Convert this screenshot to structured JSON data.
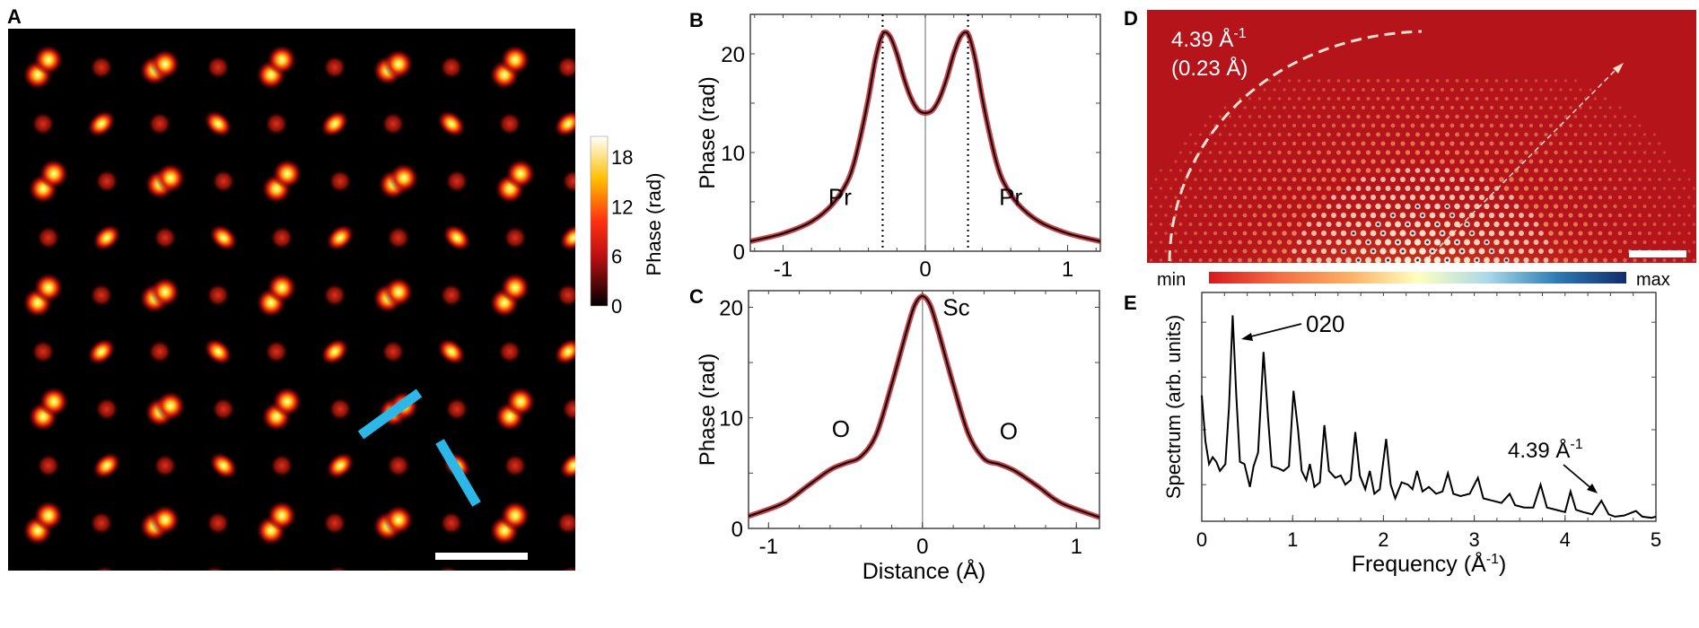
{
  "panels": {
    "a": "A",
    "b": "B",
    "c": "C",
    "d": "D",
    "e": "E"
  },
  "colors": {
    "curve": "#000000",
    "band": "#c0141c",
    "marker_bar": "#2bb8e8",
    "map_bg": "#b5141a"
  },
  "panel_a": {
    "colorbar": {
      "label": "Phase (rad)",
      "ticks": [
        "0",
        "6",
        "12",
        "18"
      ],
      "tick_values": [
        0,
        6,
        12,
        18
      ],
      "range": [
        0,
        20.5
      ]
    }
  },
  "panel_d": {
    "annotation_line1": "4.39 Å",
    "annotation_sup": "-1",
    "annotation_line2": "(0.23 Å)",
    "colorbar": {
      "min": "min",
      "max": "max",
      "colors": [
        "#d7191c",
        "#f46d43",
        "#fdae61",
        "#ffffbf",
        "#abd9e9",
        "#2c7bb6",
        "#132b6b"
      ]
    }
  },
  "chart_data": [
    {
      "panel": "B",
      "type": "line",
      "xlabel": "",
      "ylabel": "Phase (rad)",
      "xlim": [
        -1.23,
        1.23
      ],
      "ylim": [
        0,
        24
      ],
      "xticks": [
        -1,
        0,
        1
      ],
      "yticks": [
        0,
        10,
        20
      ],
      "annotations": [
        {
          "text": "Pr",
          "x": -0.6,
          "y": 5.5
        },
        {
          "text": "Pr",
          "x": 0.6,
          "y": 5.5
        }
      ],
      "vlines_dotted": [
        -0.3,
        0.3
      ],
      "vline_solid": 0,
      "points": [
        [
          -1.23,
          1.0
        ],
        [
          -1.0,
          1.8
        ],
        [
          -0.8,
          3.0
        ],
        [
          -0.65,
          4.8
        ],
        [
          -0.55,
          7.0
        ],
        [
          -0.5,
          9.0
        ],
        [
          -0.45,
          12.0
        ],
        [
          -0.4,
          15.5
        ],
        [
          -0.35,
          19.5
        ],
        [
          -0.3,
          22.0
        ],
        [
          -0.25,
          21.8
        ],
        [
          -0.2,
          20.0
        ],
        [
          -0.15,
          17.5
        ],
        [
          -0.1,
          15.5
        ],
        [
          -0.05,
          14.3
        ],
        [
          0,
          14.0
        ],
        [
          0.05,
          14.3
        ],
        [
          0.1,
          15.5
        ],
        [
          0.15,
          17.5
        ],
        [
          0.2,
          20.0
        ],
        [
          0.25,
          21.8
        ],
        [
          0.3,
          22.0
        ],
        [
          0.35,
          19.5
        ],
        [
          0.4,
          15.5
        ],
        [
          0.45,
          12.0
        ],
        [
          0.5,
          9.0
        ],
        [
          0.55,
          7.0
        ],
        [
          0.65,
          4.8
        ],
        [
          0.8,
          3.0
        ],
        [
          1.0,
          1.8
        ],
        [
          1.23,
          1.0
        ]
      ]
    },
    {
      "panel": "C",
      "type": "line",
      "xlabel": "Distance (Å)",
      "ylabel": "Phase (rad)",
      "xlim": [
        -1.13,
        1.15
      ],
      "ylim": [
        0,
        21.5
      ],
      "xticks": [
        -1,
        0,
        1
      ],
      "yticks": [
        0,
        10,
        20
      ],
      "annotations": [
        {
          "text": "Sc",
          "x": 0.22,
          "y": 20
        },
        {
          "text": "O",
          "x": -0.53,
          "y": 9.0
        },
        {
          "text": "O",
          "x": 0.56,
          "y": 8.8
        }
      ],
      "vline_solid": 0,
      "points": [
        [
          -1.13,
          1.1
        ],
        [
          -0.9,
          2.3
        ],
        [
          -0.75,
          3.8
        ],
        [
          -0.6,
          5.3
        ],
        [
          -0.5,
          5.9
        ],
        [
          -0.4,
          6.5
        ],
        [
          -0.3,
          8.5
        ],
        [
          -0.2,
          13.0
        ],
        [
          -0.1,
          18.0
        ],
        [
          -0.05,
          20.2
        ],
        [
          0,
          21.0
        ],
        [
          0.05,
          20.2
        ],
        [
          0.1,
          18.0
        ],
        [
          0.2,
          13.0
        ],
        [
          0.3,
          8.5
        ],
        [
          0.4,
          6.3
        ],
        [
          0.5,
          5.8
        ],
        [
          0.6,
          5.2
        ],
        [
          0.75,
          3.8
        ],
        [
          0.9,
          2.3
        ],
        [
          1.15,
          1.0
        ]
      ]
    },
    {
      "panel": "E",
      "type": "line",
      "xlabel": "Frequency (Å",
      "xlabel_sup": "-1",
      "xlabel_end": ")",
      "ylabel": "Spectrum (arb. units)",
      "xlim": [
        0,
        5
      ],
      "ylim": [
        0,
        1
      ],
      "xticks": [
        0,
        1,
        2,
        3,
        4,
        5
      ],
      "annotations": [
        {
          "text": "020",
          "x": 0.9,
          "y": 0.9
        },
        {
          "text": "4.39 Å",
          "sup": "-1",
          "x": 4.39,
          "y": 0.3
        }
      ],
      "points": [
        [
          0,
          0.55
        ],
        [
          0.04,
          0.35
        ],
        [
          0.08,
          0.25
        ],
        [
          0.12,
          0.28
        ],
        [
          0.16,
          0.26
        ],
        [
          0.2,
          0.22
        ],
        [
          0.26,
          0.25
        ],
        [
          0.3,
          0.5
        ],
        [
          0.34,
          0.9
        ],
        [
          0.38,
          0.55
        ],
        [
          0.42,
          0.26
        ],
        [
          0.47,
          0.25
        ],
        [
          0.5,
          0.2
        ],
        [
          0.53,
          0.15
        ],
        [
          0.57,
          0.24
        ],
        [
          0.62,
          0.3
        ],
        [
          0.68,
          0.74
        ],
        [
          0.73,
          0.45
        ],
        [
          0.77,
          0.24
        ],
        [
          0.85,
          0.23
        ],
        [
          0.9,
          0.22
        ],
        [
          0.96,
          0.24
        ],
        [
          1.01,
          0.57
        ],
        [
          1.06,
          0.4
        ],
        [
          1.1,
          0.22
        ],
        [
          1.15,
          0.18
        ],
        [
          1.19,
          0.25
        ],
        [
          1.24,
          0.15
        ],
        [
          1.3,
          0.17
        ],
        [
          1.35,
          0.42
        ],
        [
          1.4,
          0.22
        ],
        [
          1.47,
          0.19
        ],
        [
          1.53,
          0.2
        ],
        [
          1.58,
          0.16
        ],
        [
          1.64,
          0.18
        ],
        [
          1.69,
          0.39
        ],
        [
          1.74,
          0.2
        ],
        [
          1.8,
          0.14
        ],
        [
          1.85,
          0.22
        ],
        [
          1.9,
          0.12
        ],
        [
          1.96,
          0.14
        ],
        [
          2.03,
          0.36
        ],
        [
          2.08,
          0.16
        ],
        [
          2.13,
          0.1
        ],
        [
          2.2,
          0.17
        ],
        [
          2.27,
          0.16
        ],
        [
          2.32,
          0.14
        ],
        [
          2.37,
          0.22
        ],
        [
          2.43,
          0.13
        ],
        [
          2.5,
          0.15
        ],
        [
          2.58,
          0.12
        ],
        [
          2.65,
          0.13
        ],
        [
          2.71,
          0.21
        ],
        [
          2.77,
          0.12
        ],
        [
          2.85,
          0.11
        ],
        [
          2.95,
          0.12
        ],
        [
          3.04,
          0.19
        ],
        [
          3.1,
          0.1
        ],
        [
          3.2,
          0.09
        ],
        [
          3.3,
          0.08
        ],
        [
          3.39,
          0.12
        ],
        [
          3.45,
          0.07
        ],
        [
          3.55,
          0.06
        ],
        [
          3.65,
          0.06
        ],
        [
          3.73,
          0.16
        ],
        [
          3.8,
          0.06
        ],
        [
          3.9,
          0.05
        ],
        [
          4.0,
          0.04
        ],
        [
          4.06,
          0.13
        ],
        [
          4.12,
          0.05
        ],
        [
          4.2,
          0.04
        ],
        [
          4.3,
          0.03
        ],
        [
          4.4,
          0.09
        ],
        [
          4.48,
          0.03
        ],
        [
          4.55,
          0.02
        ],
        [
          4.65,
          0.025
        ],
        [
          4.78,
          0.045
        ],
        [
          4.85,
          0.02
        ],
        [
          4.95,
          0.015
        ],
        [
          5.0,
          0.02
        ]
      ]
    }
  ]
}
